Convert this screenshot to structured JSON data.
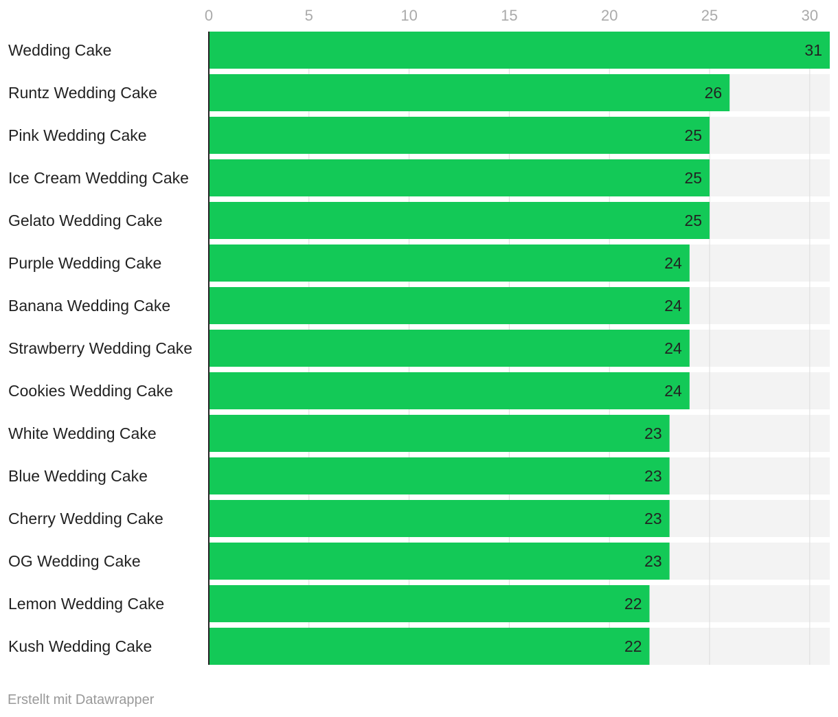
{
  "chart_data": {
    "type": "bar",
    "orientation": "horizontal",
    "categories": [
      "Wedding Cake",
      "Runtz Wedding Cake",
      "Pink Wedding Cake",
      "Ice Cream Wedding Cake",
      "Gelato Wedding Cake",
      "Purple Wedding Cake",
      "Banana Wedding Cake",
      "Strawberry Wedding Cake",
      "Cookies Wedding Cake",
      "White Wedding Cake",
      "Blue Wedding Cake",
      "Cherry Wedding Cake",
      "OG Wedding Cake",
      "Lemon Wedding Cake",
      "Kush Wedding Cake"
    ],
    "values": [
      31,
      26,
      25,
      25,
      25,
      24,
      24,
      24,
      24,
      23,
      23,
      23,
      23,
      22,
      22
    ],
    "xlim": [
      0,
      31
    ],
    "xticks": [
      0,
      5,
      10,
      15,
      20,
      25,
      30
    ],
    "grid": true,
    "data_labels": true,
    "title": "",
    "xlabel": "",
    "ylabel": "",
    "colors": {
      "bar": "#13c957",
      "bar_background": "#f3f3f3",
      "grid": "#dcdcdc",
      "axis": "#222222"
    }
  },
  "footer": {
    "credit": "Erstellt mit Datawrapper"
  }
}
